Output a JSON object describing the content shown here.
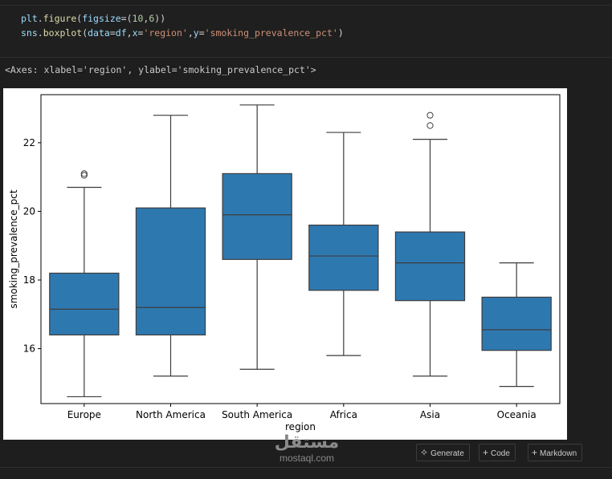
{
  "code_cell": {
    "lines": [
      [
        {
          "text": "plt",
          "color": "#9cdcfe"
        },
        {
          "text": ".",
          "color": "#d4d4d4"
        },
        {
          "text": "figure",
          "color": "#dcdcaa"
        },
        {
          "text": "(",
          "color": "#d4d4d4"
        },
        {
          "text": "figsize",
          "color": "#9cdcfe"
        },
        {
          "text": "=(",
          "color": "#d4d4d4"
        },
        {
          "text": "10",
          "color": "#b5cea8"
        },
        {
          "text": ",",
          "color": "#d4d4d4"
        },
        {
          "text": "6",
          "color": "#b5cea8"
        },
        {
          "text": "))",
          "color": "#d4d4d4"
        }
      ],
      [
        {
          "text": "sns",
          "color": "#9cdcfe"
        },
        {
          "text": ".",
          "color": "#d4d4d4"
        },
        {
          "text": "boxplot",
          "color": "#dcdcaa"
        },
        {
          "text": "(",
          "color": "#d4d4d4"
        },
        {
          "text": "data",
          "color": "#9cdcfe"
        },
        {
          "text": "=",
          "color": "#d4d4d4"
        },
        {
          "text": "df",
          "color": "#9cdcfe"
        },
        {
          "text": ",",
          "color": "#d4d4d4"
        },
        {
          "text": "x",
          "color": "#9cdcfe"
        },
        {
          "text": "=",
          "color": "#d4d4d4"
        },
        {
          "text": "'region'",
          "color": "#ce9178"
        },
        {
          "text": ",",
          "color": "#d4d4d4"
        },
        {
          "text": "y",
          "color": "#9cdcfe"
        },
        {
          "text": "=",
          "color": "#d4d4d4"
        },
        {
          "text": "'smoking_prevalence_pct'",
          "color": "#ce9178"
        },
        {
          "text": ")",
          "color": "#d4d4d4"
        }
      ]
    ]
  },
  "output_repr": "<Axes: xlabel='region', ylabel='smoking_prevalence_pct'>",
  "chart_data": {
    "type": "box",
    "xlabel": "region",
    "ylabel": "smoking_prevalence_pct",
    "ylim": [
      14.4,
      23.4
    ],
    "yticks": [
      16,
      18,
      20,
      22
    ],
    "color": "#2e78b0",
    "categories": [
      "Europe",
      "North America",
      "South America",
      "Africa",
      "Asia",
      "Oceania"
    ],
    "boxes": [
      {
        "whislo": 14.6,
        "q1": 16.4,
        "med": 17.15,
        "q3": 18.2,
        "whishi": 20.7,
        "fliers": [
          21.05,
          21.1
        ]
      },
      {
        "whislo": 15.2,
        "q1": 16.4,
        "med": 17.2,
        "q3": 20.1,
        "whishi": 22.8,
        "fliers": []
      },
      {
        "whislo": 15.4,
        "q1": 18.6,
        "med": 19.9,
        "q3": 21.1,
        "whishi": 23.1,
        "fliers": []
      },
      {
        "whislo": 15.8,
        "q1": 17.7,
        "med": 18.7,
        "q3": 19.6,
        "whishi": 22.3,
        "fliers": []
      },
      {
        "whislo": 15.2,
        "q1": 17.4,
        "med": 18.5,
        "q3": 19.4,
        "whishi": 22.1,
        "fliers": [
          22.5,
          22.8
        ]
      },
      {
        "whislo": 14.9,
        "q1": 15.95,
        "med": 16.55,
        "q3": 17.5,
        "whishi": 18.5,
        "fliers": []
      }
    ]
  },
  "toolbar": {
    "generate_label": "Generate",
    "generate_icon": "sparkle-icon",
    "code_label": "Code",
    "code_icon": "plus-icon",
    "markdown_label": "Markdown",
    "markdown_icon": "plus-icon"
  },
  "watermark": {
    "arabic": "مستقل",
    "latin": "mostaql.com"
  }
}
